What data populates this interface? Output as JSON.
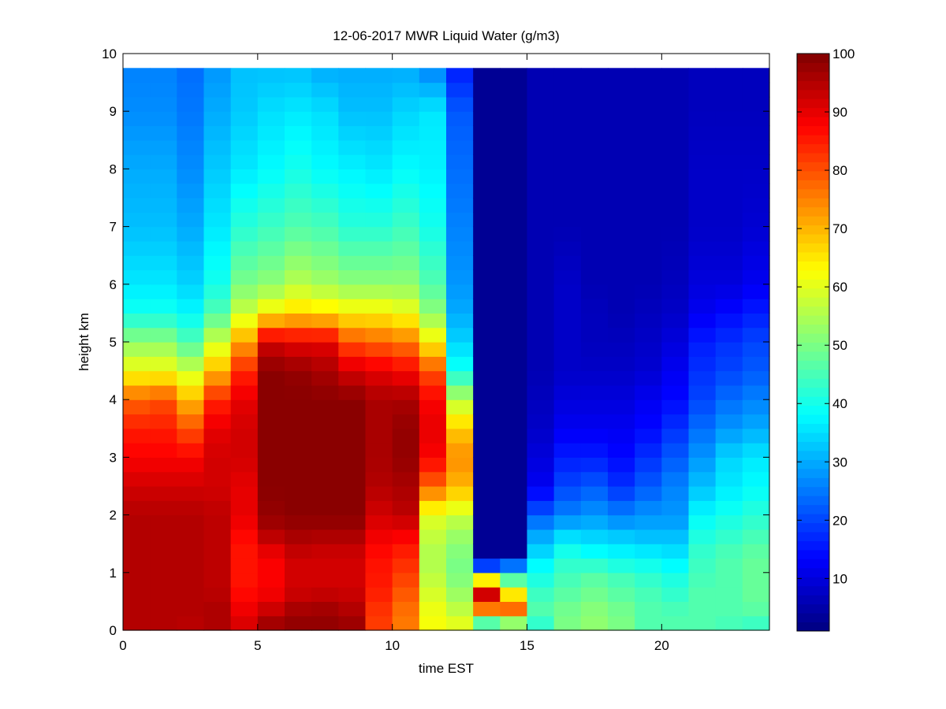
{
  "chart_data": {
    "type": "heatmap",
    "title": "12-06-2017 MWR Liquid Water (g/m3)",
    "xlabel": "time EST",
    "ylabel": "height km",
    "xlim": [
      0,
      24
    ],
    "ylim": [
      0,
      10
    ],
    "x_ticks": [
      0,
      5,
      10,
      15,
      20
    ],
    "y_ticks": [
      0,
      1,
      2,
      3,
      4,
      5,
      6,
      7,
      8,
      9,
      10
    ],
    "colorbar": {
      "colormap": "jet",
      "range": [
        1,
        100
      ],
      "ticks": [
        10,
        20,
        30,
        40,
        50,
        60,
        70,
        80,
        90,
        100
      ]
    },
    "x": [
      0,
      1,
      2,
      3,
      4,
      5,
      6,
      7,
      8,
      9,
      10,
      11,
      12,
      13,
      14,
      15,
      16,
      17,
      18,
      19,
      20,
      21,
      22,
      23
    ],
    "profile_heights": [
      0,
      0.25,
      0.5,
      0.75,
      1,
      1.25,
      1.5,
      1.75,
      2,
      2.5,
      3,
      3.5,
      4,
      4.5,
      5,
      5.5,
      6,
      7,
      8,
      9,
      9.75
    ],
    "columns": [
      [
        95,
        95,
        95,
        95,
        95,
        95,
        95,
        95,
        95,
        92,
        88,
        85,
        78,
        62,
        52,
        40,
        36,
        32,
        30,
        27,
        26
      ],
      [
        95,
        95,
        95,
        95,
        95,
        95,
        95,
        95,
        95,
        92,
        88,
        85,
        80,
        62,
        52,
        40,
        36,
        32,
        30,
        27,
        26
      ],
      [
        94,
        95,
        95,
        95,
        95,
        95,
        95,
        95,
        95,
        92,
        88,
        80,
        70,
        58,
        46,
        38,
        34,
        30,
        27,
        25,
        24
      ],
      [
        95,
        96,
        95,
        94,
        94,
        94,
        94,
        94,
        94,
        92,
        92,
        90,
        84,
        70,
        58,
        46,
        40,
        36,
        33,
        30,
        28
      ],
      [
        92,
        90,
        88,
        86,
        86,
        86,
        86,
        88,
        90,
        90,
        92,
        92,
        90,
        84,
        72,
        58,
        50,
        42,
        36,
        33,
        32
      ],
      [
        98,
        95,
        90,
        88,
        88,
        88,
        92,
        96,
        98,
        99,
        99,
        99,
        99,
        99,
        92,
        64,
        52,
        44,
        38,
        35,
        32
      ],
      [
        98,
        98,
        94,
        92,
        92,
        92,
        95,
        97,
        99,
        99,
        99,
        99,
        99,
        98,
        90,
        67,
        56,
        46,
        40,
        36,
        32
      ],
      [
        98,
        98,
        95,
        92,
        92,
        92,
        94,
        97,
        99,
        99,
        99,
        99,
        99,
        96,
        90,
        66,
        54,
        45,
        38,
        35,
        30
      ],
      [
        98,
        96,
        94,
        92,
        92,
        92,
        94,
        97,
        99,
        99,
        99,
        99,
        99,
        92,
        80,
        64,
        52,
        42,
        37,
        32,
        30
      ],
      [
        82,
        82,
        84,
        85,
        86,
        86,
        88,
        90,
        92,
        95,
        96,
        96,
        96,
        90,
        78,
        64,
        52,
        42,
        36,
        32,
        30
      ],
      [
        76,
        76,
        78,
        80,
        82,
        84,
        86,
        90,
        94,
        96,
        98,
        98,
        96,
        88,
        76,
        62,
        52,
        44,
        38,
        34,
        30
      ],
      [
        62,
        62,
        60,
        58,
        56,
        55,
        56,
        58,
        60,
        78,
        88,
        90,
        88,
        80,
        64,
        52,
        46,
        40,
        37,
        36,
        26
      ],
      [
        62,
        58,
        55,
        52,
        50,
        50,
        52,
        54,
        58,
        70,
        74,
        68,
        56,
        40,
        34,
        30,
        28,
        26,
        24,
        22,
        16
      ],
      [
        33,
        60,
        92,
        92,
        36,
        3,
        3,
        3,
        3,
        3,
        3,
        3,
        3,
        3,
        3,
        3,
        3,
        3,
        3,
        3,
        3
      ],
      [
        33,
        72,
        82,
        48,
        46,
        3,
        3,
        3,
        3,
        3,
        3,
        3,
        3,
        3,
        3,
        3,
        3,
        3,
        3,
        3,
        3
      ],
      [
        40,
        46,
        46,
        42,
        40,
        36,
        32,
        28,
        22,
        12,
        10,
        8,
        7,
        6,
        6,
        6,
        6,
        6,
        6,
        6,
        6
      ],
      [
        50,
        50,
        48,
        46,
        44,
        42,
        38,
        32,
        26,
        20,
        16,
        12,
        10,
        8,
        8,
        8,
        8,
        6,
        6,
        6,
        6
      ],
      [
        52,
        52,
        50,
        48,
        46,
        40,
        36,
        32,
        28,
        22,
        16,
        12,
        10,
        8,
        7,
        7,
        6,
        6,
        6,
        6,
        6
      ],
      [
        50,
        50,
        48,
        46,
        44,
        38,
        36,
        30,
        26,
        18,
        14,
        12,
        10,
        8,
        7,
        6,
        6,
        6,
        6,
        6,
        6
      ],
      [
        46,
        46,
        46,
        44,
        42,
        38,
        34,
        30,
        28,
        22,
        18,
        14,
        12,
        9,
        8,
        7,
        6,
        6,
        6,
        6,
        6
      ],
      [
        46,
        46,
        44,
        42,
        40,
        36,
        34,
        30,
        28,
        26,
        22,
        18,
        14,
        12,
        10,
        8,
        7,
        6,
        6,
        6,
        6
      ],
      [
        46,
        46,
        46,
        46,
        44,
        44,
        42,
        40,
        38,
        32,
        28,
        24,
        20,
        18,
        16,
        12,
        10,
        8,
        8,
        7,
        7
      ],
      [
        44,
        46,
        46,
        46,
        46,
        46,
        44,
        42,
        40,
        36,
        34,
        28,
        24,
        20,
        18,
        14,
        10,
        8,
        8,
        7,
        7
      ],
      [
        42,
        46,
        48,
        48,
        48,
        48,
        46,
        44,
        42,
        38,
        36,
        30,
        26,
        22,
        20,
        16,
        12,
        9,
        8,
        7,
        7
      ]
    ]
  }
}
